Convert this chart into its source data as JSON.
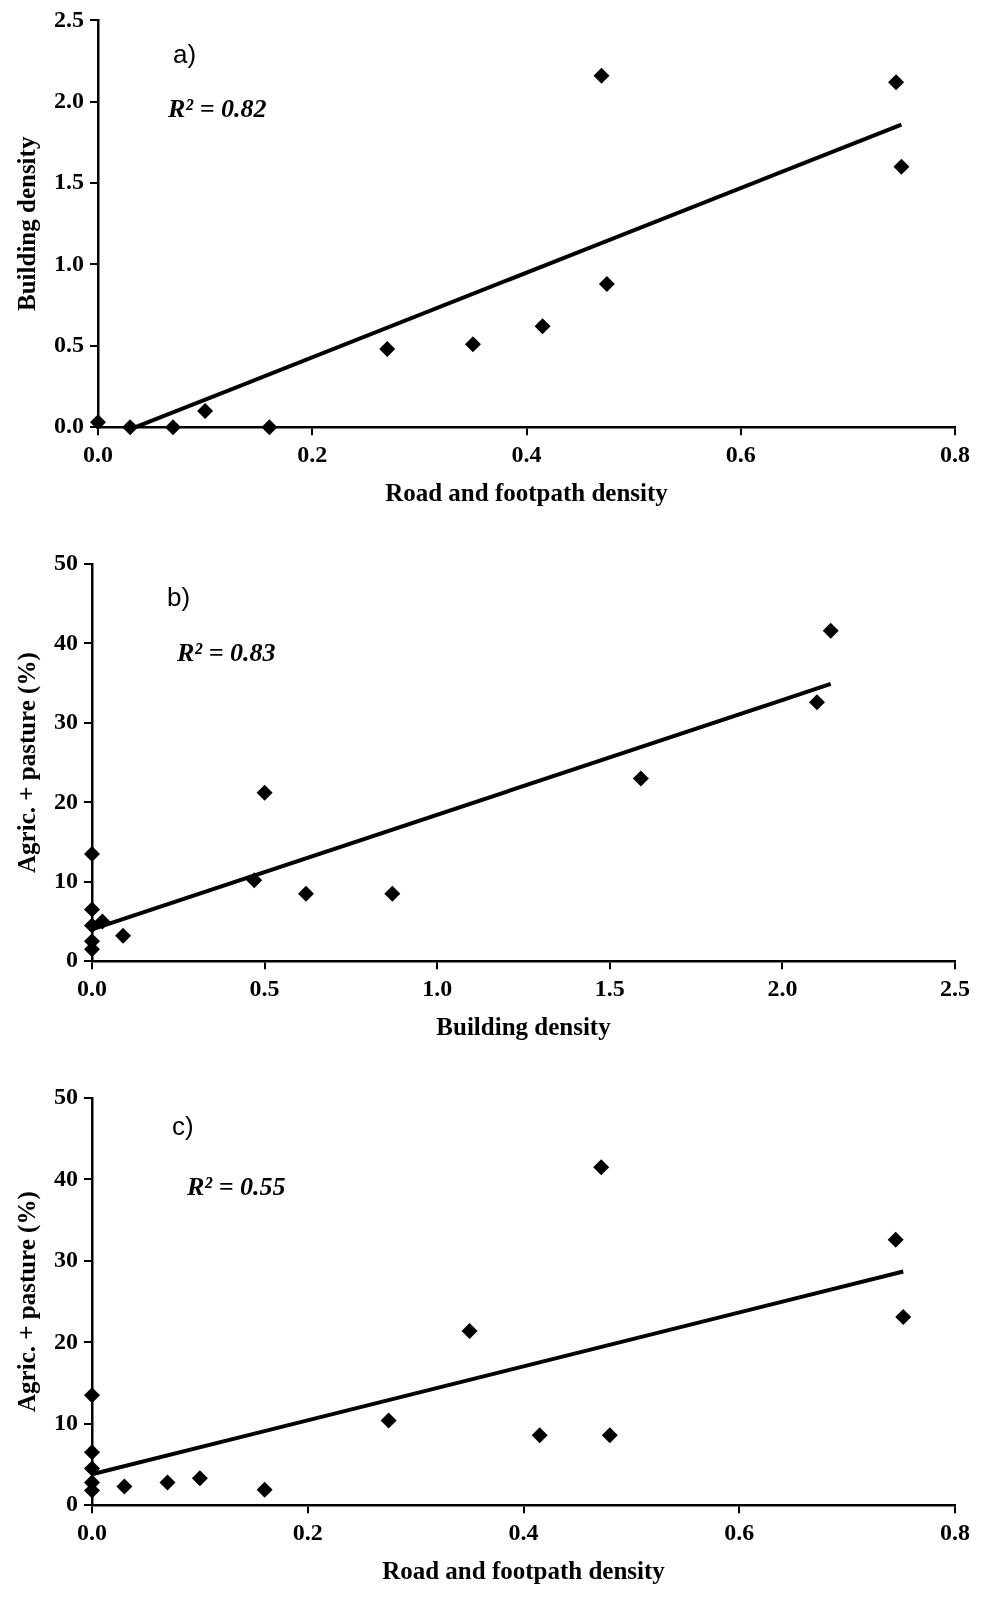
{
  "chart_data": [
    {
      "type": "scatter",
      "xlabel": "Road and footpath density",
      "ylabel": "Building density",
      "annotations": [
        "a)",
        "R² = 0.82"
      ],
      "grid": false,
      "legend": false,
      "xlim": [
        0,
        0.8
      ],
      "xticks": [
        {
          "value": 0,
          "label": "0.0"
        },
        0.2,
        0.4,
        0.6,
        0.8
      ],
      "ylim": [
        0,
        2.5
      ],
      "yticks": [
        {
          "value": 0,
          "label": "0.0"
        },
        0.5,
        {
          "value": 1,
          "label": "1.0"
        },
        1.5,
        {
          "value": 2,
          "label": "2.0"
        },
        2.5
      ],
      "series": [
        {
          "type": "scatter",
          "color": "#000000",
          "marker": "diamond",
          "x": [
            0,
            0.03,
            0.07,
            0.1,
            0.16,
            0.27,
            0.35,
            0.415,
            0.47,
            0.475,
            0.745,
            0.75
          ],
          "values": [
            0.03,
            0,
            0,
            0.1,
            0,
            0.48,
            0.51,
            0.62,
            2.16,
            0.88,
            2.12,
            1.6
          ]
        },
        {
          "type": "line",
          "color": "#000000",
          "marker": "none",
          "x": [
            0.035,
            0.75
          ],
          "values": [
            0,
            1.86
          ]
        }
      ]
    },
    {
      "type": "scatter",
      "xlabel": "Building density",
      "ylabel": "Agric. + pasture (%)",
      "annotations": [
        "b)",
        "R² = 0.83"
      ],
      "grid": false,
      "legend": false,
      "xlim": [
        0,
        2.5
      ],
      "xticks": [
        {
          "value": 0,
          "label": "0.0"
        },
        0.5,
        {
          "value": 1,
          "label": "1.0"
        },
        1.5,
        {
          "value": 2,
          "label": "2.0"
        },
        2.5
      ],
      "ylim": [
        0,
        50
      ],
      "yticks": [
        0,
        10,
        20,
        30,
        40,
        50
      ],
      "series": [
        {
          "type": "scatter",
          "color": "#000000",
          "x": [
            0,
            0,
            0,
            0,
            0,
            0.03,
            0.09,
            0.47,
            0.5,
            0.62,
            0.87,
            1.59,
            2.1,
            2.14
          ],
          "values": [
            13.5,
            6.5,
            4.5,
            2.5,
            1.5,
            5,
            3.2,
            10.2,
            21.2,
            8.5,
            8.5,
            23,
            32.6,
            41.6
          ],
          "marker": "diamond"
        },
        {
          "type": "line",
          "color": "#000000",
          "marker": "none",
          "x": [
            0,
            2.14
          ],
          "values": [
            4,
            34.9
          ]
        }
      ]
    },
    {
      "type": "scatter",
      "xlabel": "Road and footpath density",
      "ylabel": "Agric. + pasture (%)",
      "annotations": [
        "c)",
        "R² = 0.55"
      ],
      "grid": false,
      "legend": false,
      "xlim": [
        0,
        0.8
      ],
      "xticks": [
        {
          "value": 0,
          "label": "0.0"
        },
        0.2,
        0.4,
        0.6,
        0.8
      ],
      "ylim": [
        0,
        50
      ],
      "yticks": [
        0,
        10,
        20,
        30,
        40,
        50
      ],
      "series": [
        {
          "type": "scatter",
          "color": "#000000",
          "x": [
            0,
            0,
            0,
            0,
            0,
            0.03,
            0.07,
            0.1,
            0.16,
            0.275,
            0.35,
            0.415,
            0.48,
            0.472,
            0.745,
            0.752
          ],
          "values": [
            13.5,
            6.5,
            4.5,
            2.8,
            1.8,
            2.3,
            2.8,
            3.3,
            1.9,
            10.4,
            21.4,
            8.6,
            8.6,
            41.5,
            32.6,
            23.1
          ],
          "marker": "diamond"
        },
        {
          "type": "line",
          "color": "#000000",
          "marker": "none",
          "x": [
            0,
            0.752
          ],
          "values": [
            3.8,
            28.7
          ]
        }
      ]
    }
  ]
}
